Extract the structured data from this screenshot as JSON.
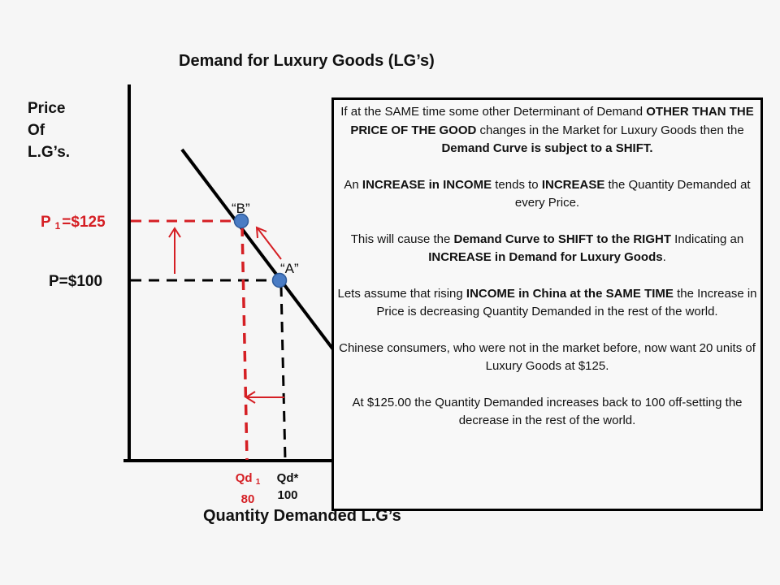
{
  "title": "Demand for Luxury Goods (LG’s)",
  "y_axis_label": [
    "Price",
    "Of",
    "L.G’s."
  ],
  "x_axis_label": "Quantity Demanded L.G’s",
  "price_labels": {
    "p1_prefix": "P ",
    "p1_sub": "1",
    "p1_value": "=$125",
    "p0": "P=$100"
  },
  "quantity_labels": {
    "q1_prefix": "Qd ",
    "q1_sub": "1",
    "q1_value": "80",
    "q0_name": "Qd*",
    "q0_value": "100"
  },
  "points": {
    "b_label": "“B”",
    "a_label": "“A”"
  },
  "colors": {
    "accent_red": "#d51f24",
    "point_blue": "#4a7cc4",
    "point_border": "#2d5a9a",
    "axis": "#000000"
  },
  "textbox": {
    "paragraphs": [
      [
        {
          "t": "If at the SAME time some other Determinant of Demand ",
          "b": false
        },
        {
          "t": "OTHER THAN THE PRICE OF THE GOOD",
          "b": true
        },
        {
          "t": " changes in the Market for Luxury Goods then the ",
          "b": false
        },
        {
          "t": "Demand Curve is subject to a SHIFT.",
          "b": true
        }
      ],
      [
        {
          "t": "An ",
          "b": false
        },
        {
          "t": "INCREASE in INCOME",
          "b": true
        },
        {
          "t": " tends to ",
          "b": false
        },
        {
          "t": "INCREASE",
          "b": true
        },
        {
          "t": " the Quantity Demanded at every Price.",
          "b": false
        }
      ],
      [
        {
          "t": "This will cause the ",
          "b": false
        },
        {
          "t": "Demand Curve to SHIFT to the RIGHT",
          "b": true
        },
        {
          "t": " Indicating an ",
          "b": false
        },
        {
          "t": "INCREASE in Demand for Luxury Goods",
          "b": true
        },
        {
          "t": ".",
          "b": false
        }
      ],
      [
        {
          "t": "Lets assume that rising ",
          "b": false
        },
        {
          "t": "INCOME in China at the SAME TIME",
          "b": true
        },
        {
          "t": " the Increase in Price is decreasing Quantity Demanded in the rest of the world.",
          "b": false
        }
      ],
      [
        {
          "t": "Chinese consumers, who were not in the market before, now want 20 units of Luxury Goods at $125.",
          "b": false
        }
      ],
      [
        {
          "t": "At $125.00 the Quantity Demanded increases back to 100 off-setting the decrease in the rest of the world.",
          "b": false
        }
      ]
    ]
  },
  "chart_data": {
    "type": "line",
    "title": "Demand for Luxury Goods (LG’s)",
    "xlabel": "Quantity Demanded L.G’s",
    "ylabel": "Price Of L.G’s.",
    "series": [
      {
        "name": "Demand Curve",
        "points": [
          {
            "label": "B",
            "x": 80,
            "y": 125
          },
          {
            "label": "A",
            "x": 100,
            "y": 100
          }
        ]
      }
    ],
    "annotations": [
      "P1=$125",
      "P=$100",
      "Qd1 = 80",
      "Qd* = 100",
      "Arrow A→B along the demand curve",
      "Arrow up: price rises from $100 to $125",
      "Arrow left: quantity falls from 100 to 80"
    ],
    "grid": false
  }
}
